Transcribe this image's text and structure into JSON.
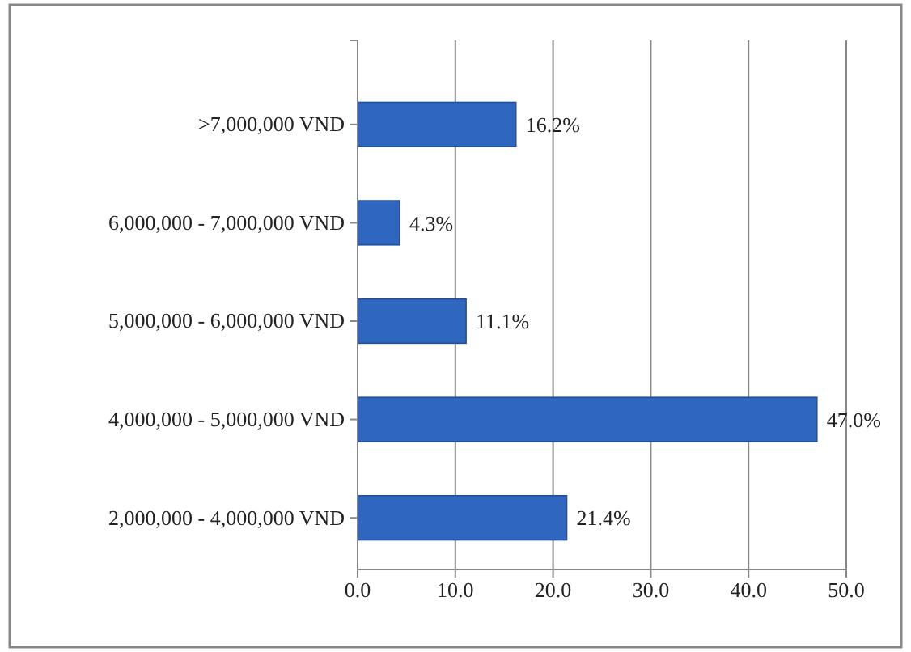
{
  "chart_data": {
    "type": "bar",
    "orientation": "horizontal",
    "categories": [
      ">7,000,000 VND",
      "6,000,000 - 7,000,000 VND",
      "5,000,000 - 6,000,000 VND",
      "4,000,000 - 5,000,000 VND",
      "2,000,000 - 4,000,000 VND"
    ],
    "values": [
      16.2,
      4.3,
      11.1,
      47.0,
      21.4
    ],
    "value_labels": [
      "16.2%",
      "4.3%",
      "11.1%",
      "47.0%",
      "21.4%"
    ],
    "color": "#2f66bf",
    "xlim": [
      0,
      50
    ],
    "xticks": [
      {
        "value": 0,
        "label": "0.0"
      },
      {
        "value": 10,
        "label": "10.0"
      },
      {
        "value": 20,
        "label": "20.0"
      },
      {
        "value": 30,
        "label": "30.0"
      },
      {
        "value": 40,
        "label": "40.0"
      },
      {
        "value": 50,
        "label": "50.0"
      }
    ],
    "grid": "x"
  }
}
